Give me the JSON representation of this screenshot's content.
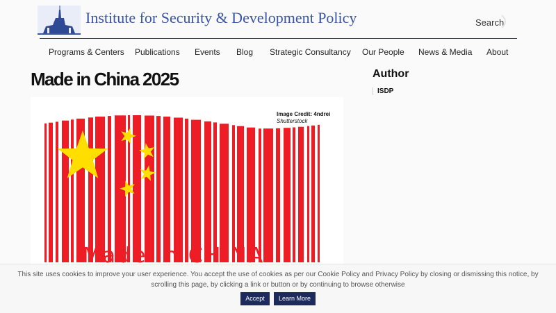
{
  "header": {
    "site_title": "Institute for Security & Development Policy",
    "search_label": "Search",
    "brand_color": "#3a55a6"
  },
  "nav": {
    "items": [
      {
        "label": "Programs & Centers"
      },
      {
        "label": "Publications"
      },
      {
        "label": "Events"
      },
      {
        "label": "Blog"
      },
      {
        "label": "Strategic Consultancy"
      },
      {
        "label": "Our People"
      },
      {
        "label": "News & Media"
      },
      {
        "label": "About"
      }
    ]
  },
  "main": {
    "title": "Made in China 2025",
    "image": {
      "credit_line1": "Image Credit: 4ndrei",
      "credit_line2": "Shutterstock",
      "caption": "Made in CHINA",
      "flag_red": "#ee1c25",
      "flag_yellow": "#ffde00"
    }
  },
  "sidebar": {
    "heading": "Author",
    "author": "ISDP"
  },
  "cookie": {
    "text": "This site uses cookies to improve your user experience. You accept the use of cookies as per our Cookie Policy and Privacy Policy by closing or dismissing this notice, by scrolling this page, by clicking a link or button or by continuing to browse otherwise",
    "accept_label": "Accept",
    "learn_more_label": "Learn More",
    "button_color": "#1c2a5c"
  }
}
